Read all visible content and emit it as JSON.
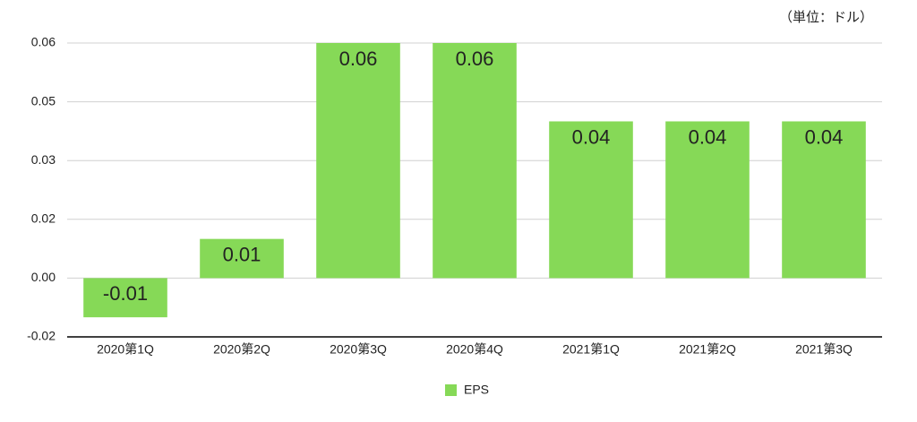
{
  "chart_data": {
    "type": "bar",
    "annotation": "（単位：ドル）",
    "categories": [
      "2020第1Q",
      "2020第2Q",
      "2020第3Q",
      "2020第4Q",
      "2021第1Q",
      "2021第2Q",
      "2021第3Q"
    ],
    "series": [
      {
        "name": "EPS",
        "color": "#86d957",
        "values": [
          -0.01,
          0.01,
          0.06,
          0.06,
          0.04,
          0.04,
          0.04
        ]
      }
    ],
    "ylim": [
      -0.015,
      0.06
    ],
    "yticks": [
      {
        "value": -0.015,
        "label": "-0.02"
      },
      {
        "value": 0,
        "label": "0.00"
      },
      {
        "value": 0.015,
        "label": "0.02"
      },
      {
        "value": 0.03,
        "label": "0.03"
      },
      {
        "value": 0.045,
        "label": "0.05"
      },
      {
        "value": 0.06,
        "label": "0.06"
      }
    ],
    "grid": true,
    "legend": "bottom"
  }
}
